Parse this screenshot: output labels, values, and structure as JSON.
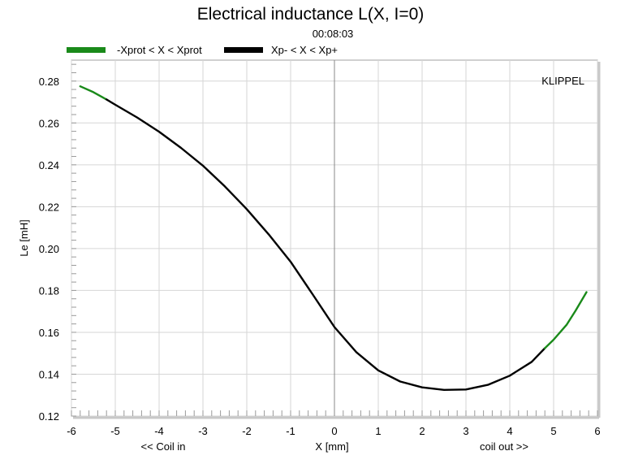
{
  "chart_data": {
    "type": "line",
    "title": "Electrical inductance L(X, I=0)",
    "subtitle": "00:08:03",
    "watermark": "KLIPPEL",
    "xlabel": "X [mm]",
    "xlabel_left": "<< Coil in",
    "xlabel_right": "coil out >>",
    "ylabel": "Le [mH]",
    "xlim": [
      -6,
      6
    ],
    "ylim": [
      0.12,
      0.29
    ],
    "xticks": [
      -6,
      -5,
      -4,
      -3,
      -2,
      -1,
      0,
      1,
      2,
      3,
      4,
      5,
      6
    ],
    "yticks": [
      0.12,
      0.14,
      0.16,
      0.18,
      0.2,
      0.22,
      0.24,
      0.26,
      0.28
    ],
    "ytick_labels": [
      "0.12",
      "0.14",
      "0.16",
      "0.18",
      "0.20",
      "0.22",
      "0.24",
      "0.26",
      "0.28"
    ],
    "grid": true,
    "legend_position": "top-left",
    "series": [
      {
        "name": "-Xprot < X < Xprot",
        "color": "#1a8a1a",
        "x": [
          -5.8,
          -5.5,
          -5.2
        ],
        "y": [
          0.2775,
          0.2747,
          0.2712
        ]
      },
      {
        "name": "Xp- < X < Xp+",
        "color": "#000000",
        "x": [
          -5.2,
          -5.0,
          -4.5,
          -4.0,
          -3.5,
          -3.0,
          -2.5,
          -2.0,
          -1.5,
          -1.0,
          -0.5,
          0.0,
          0.5,
          1.0,
          1.5,
          2.0,
          2.5,
          3.0,
          3.5,
          4.0,
          4.5,
          4.8
        ],
        "y": [
          0.2712,
          0.2687,
          0.2626,
          0.2558,
          0.2481,
          0.2396,
          0.2297,
          0.2188,
          0.2068,
          0.1937,
          0.1782,
          0.1625,
          0.1505,
          0.1418,
          0.1365,
          0.1337,
          0.1325,
          0.1327,
          0.1349,
          0.1393,
          0.1459,
          0.1524
        ]
      },
      {
        "name": "-Xprot < X < Xprot",
        "color": "#1a8a1a",
        "x": [
          4.8,
          5.0,
          5.3,
          5.5,
          5.75
        ],
        "y": [
          0.1524,
          0.1565,
          0.1637,
          0.1703,
          0.1792
        ]
      }
    ]
  }
}
